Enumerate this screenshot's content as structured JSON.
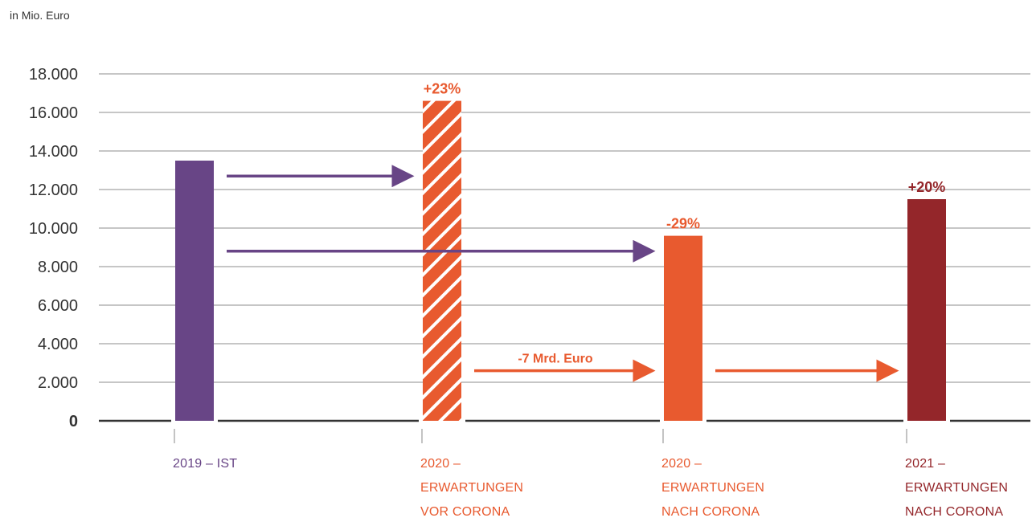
{
  "chart_data": {
    "type": "bar",
    "unit_label": "in Mio. Euro",
    "ylim": [
      0,
      18000
    ],
    "yticks": [
      "0",
      "2.000",
      "4.000",
      "6.000",
      "8.000",
      "10.000",
      "12.000",
      "14.000",
      "16.000",
      "18.000"
    ],
    "ytick_values": [
      0,
      2000,
      4000,
      6000,
      8000,
      10000,
      12000,
      14000,
      16000,
      18000
    ],
    "grid": true,
    "categories": [
      {
        "lines": [
          "2019 – IST"
        ],
        "value": 13500,
        "color": "#684586",
        "hatched": false,
        "change_label": ""
      },
      {
        "lines": [
          "2020 –",
          "ERWARTUNGEN",
          "VOR CORONA"
        ],
        "value": 16600,
        "color": "#e85a2f",
        "hatched": true,
        "change_label": "+23%"
      },
      {
        "lines": [
          "2020 –",
          "ERWARTUNGEN",
          "NACH CORONA"
        ],
        "value": 9600,
        "color": "#e85a2f",
        "hatched": false,
        "change_label": "-29%"
      },
      {
        "lines": [
          "2021 –",
          "ERWARTUNGEN",
          "NACH CORONA"
        ],
        "value": 11500,
        "color": "#94262a",
        "hatched": false,
        "change_label": "+20%"
      }
    ],
    "arrows": [
      {
        "from": 0,
        "to": 1,
        "y": 12700,
        "color": "#684586",
        "label": ""
      },
      {
        "from": 0,
        "to": 2,
        "y": 8800,
        "color": "#684586",
        "label": ""
      },
      {
        "from": 1,
        "to": 2,
        "y": 2600,
        "color": "#e85a2f",
        "label": "-7 Mrd. Euro"
      },
      {
        "from": 2,
        "to": 3,
        "y": 2600,
        "color": "#e85a2f",
        "label": ""
      }
    ]
  }
}
